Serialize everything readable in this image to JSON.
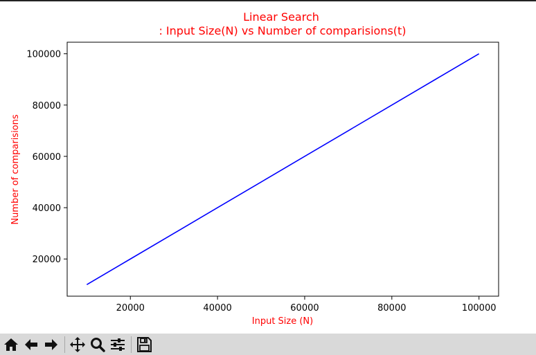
{
  "toolbar": {
    "buttons": [
      {
        "name": "home",
        "icon": "home-icon"
      },
      {
        "name": "back",
        "icon": "back-arrow-icon"
      },
      {
        "name": "forward",
        "icon": "forward-arrow-icon"
      },
      {
        "name": "pan",
        "icon": "move-icon"
      },
      {
        "name": "zoom",
        "icon": "zoom-icon"
      },
      {
        "name": "configure-subplots",
        "icon": "sliders-icon"
      },
      {
        "name": "save",
        "icon": "save-icon"
      }
    ]
  },
  "chart_data": {
    "type": "line",
    "title_line1": "Linear Search",
    "title_line2": ": Input Size(N) vs Number of comparisions(t)",
    "xlabel": "Input Size (N)",
    "ylabel": "Number of comparisions",
    "label_color": "#ff0000",
    "line_color": "#0000ff",
    "xlim": [
      5500,
      104500
    ],
    "ylim": [
      5500,
      104500
    ],
    "xticks": [
      20000,
      40000,
      60000,
      80000,
      100000
    ],
    "yticks": [
      20000,
      40000,
      60000,
      80000,
      100000
    ],
    "grid": false,
    "series": [
      {
        "x": [
          10000,
          20000,
          30000,
          40000,
          50000,
          60000,
          70000,
          80000,
          90000,
          100000
        ],
        "y": [
          10000,
          20000,
          30000,
          40000,
          50000,
          60000,
          70000,
          80000,
          90000,
          100000
        ]
      }
    ]
  }
}
